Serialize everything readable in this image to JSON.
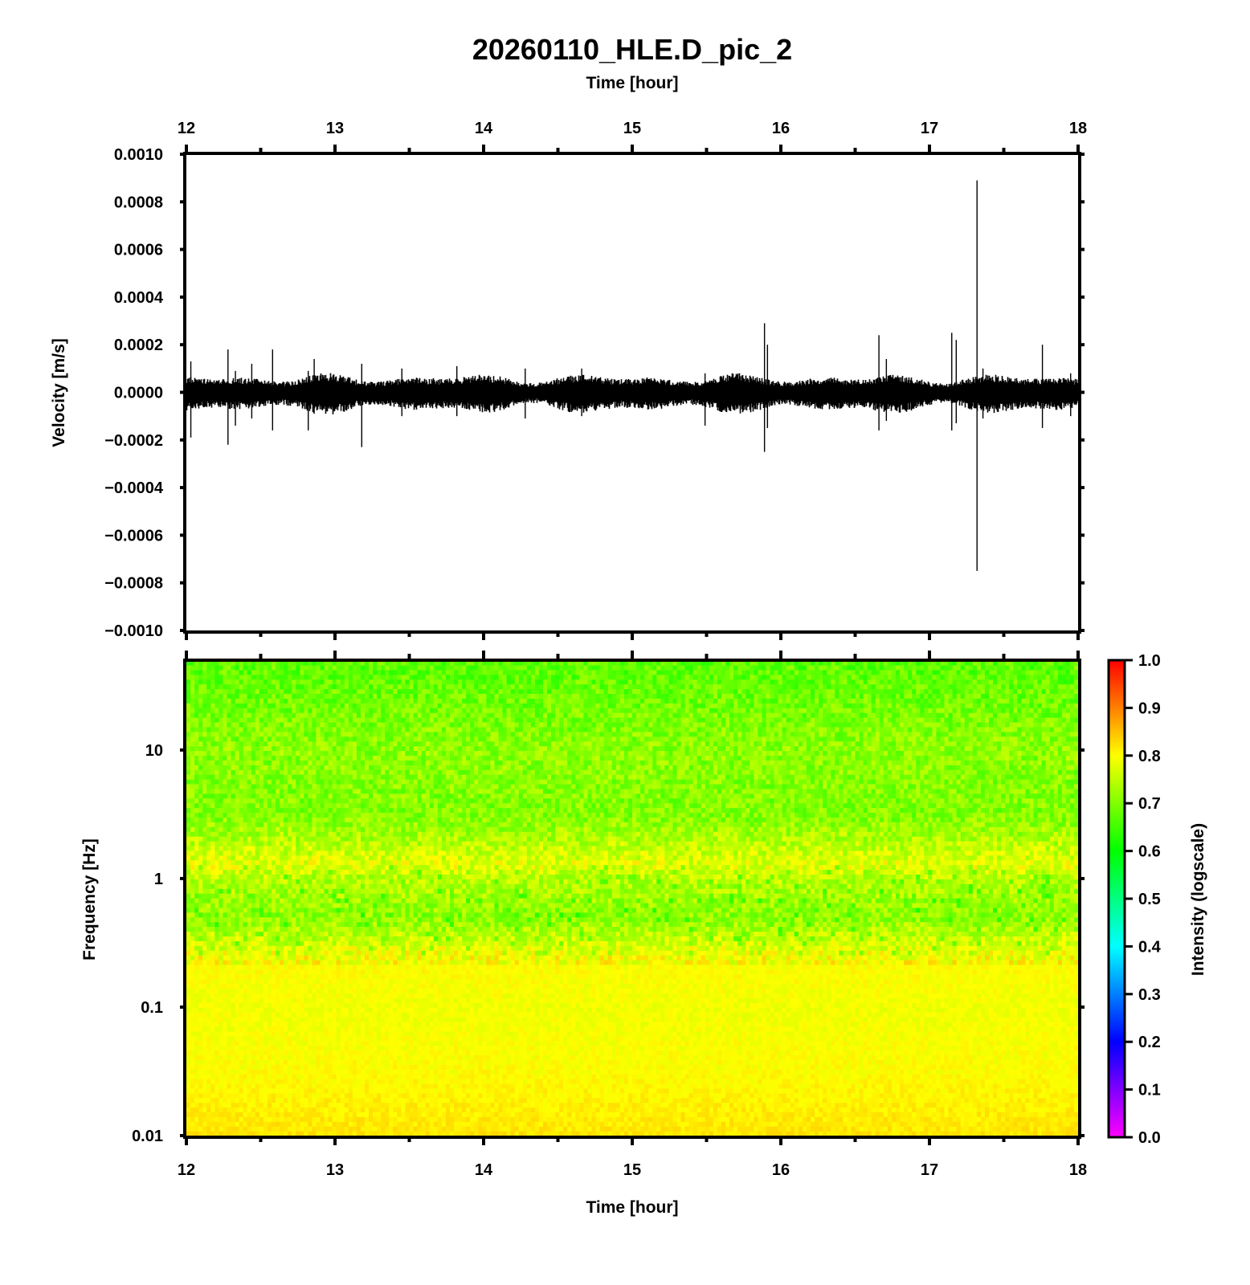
{
  "chart_data": [
    {
      "type": "line",
      "title": "20260110_HLE.D_pic_2",
      "xlabel": "Time [hour]",
      "ylabel": "Velocity [m/s]",
      "xlim": [
        12,
        18
      ],
      "ylim": [
        -0.001,
        0.001
      ],
      "x_ticks": [
        "12",
        "13",
        "14",
        "15",
        "16",
        "17",
        "18"
      ],
      "y_ticks": [
        "0.0010",
        "0.0008",
        "0.0006",
        "0.0004",
        "0.0002",
        "0.0000",
        "−0.0002",
        "−0.0004",
        "−0.0006",
        "−0.0008",
        "−0.0010"
      ],
      "noise_band": [
        -7e-05,
        6e-05
      ],
      "series": [
        {
          "x": [
            12.03,
            12.28,
            12.33,
            12.44,
            12.58,
            12.82,
            12.86,
            13.18,
            13.45,
            13.82,
            14.28,
            14.66,
            15.49,
            15.89,
            15.91,
            16.66,
            16.71,
            17.15,
            17.18,
            17.32,
            17.36,
            17.76,
            17.95
          ],
          "max": [
            0.00013,
            0.00018,
            9e-05,
            0.00012,
            0.00018,
            9e-05,
            0.00014,
            0.00012,
            0.0001,
            0.00011,
            0.0001,
            0.0001,
            8e-05,
            0.00029,
            0.0002,
            0.00024,
            0.00014,
            0.00025,
            0.00022,
            0.00089,
            0.0001,
            0.0002,
            8e-05
          ],
          "min": [
            -0.00019,
            -0.00022,
            -0.00014,
            -0.00011,
            -0.00016,
            -0.00016,
            -9e-05,
            -0.00023,
            -0.0001,
            -0.0001,
            -0.00011,
            -0.0001,
            -0.00014,
            -0.00025,
            -0.00015,
            -0.00016,
            -0.00012,
            -0.00016,
            -0.00013,
            -0.00075,
            -0.00011,
            -0.00015,
            -0.0001
          ]
        }
      ],
      "color": "#000000"
    },
    {
      "type": "heatmap",
      "xlabel": "Time [hour]",
      "ylabel": "Frequency [Hz]",
      "xlim": [
        12,
        18
      ],
      "ylim": [
        0.01,
        50
      ],
      "yscale": "log",
      "x_ticks": [
        "12",
        "13",
        "14",
        "15",
        "16",
        "17",
        "18"
      ],
      "y_ticks": [
        "10",
        "1",
        "0.1",
        "0.01"
      ],
      "colorbar": {
        "label": "Intensity (logscale)",
        "range": [
          0,
          1
        ],
        "ticks": [
          "1.0",
          "0.9",
          "0.8",
          "0.7",
          "0.6",
          "0.5",
          "0.4",
          "0.3",
          "0.2",
          "0.1",
          "0.0"
        ],
        "stops": [
          "#ff00ff",
          "#0000ff",
          "#00ffff",
          "#00ff00",
          "#ffff00",
          "#ff0000"
        ]
      },
      "intensity_profile": {
        "log10_freq": [
          -2,
          -1.5,
          -1,
          -0.7,
          -0.6,
          -0.3,
          0,
          0.1,
          0.5,
          1,
          1.5,
          1.7
        ],
        "intensity": [
          0.82,
          0.8,
          0.79,
          0.8,
          0.79,
          0.71,
          0.74,
          0.78,
          0.7,
          0.71,
          0.68,
          0.67
        ]
      }
    }
  ]
}
